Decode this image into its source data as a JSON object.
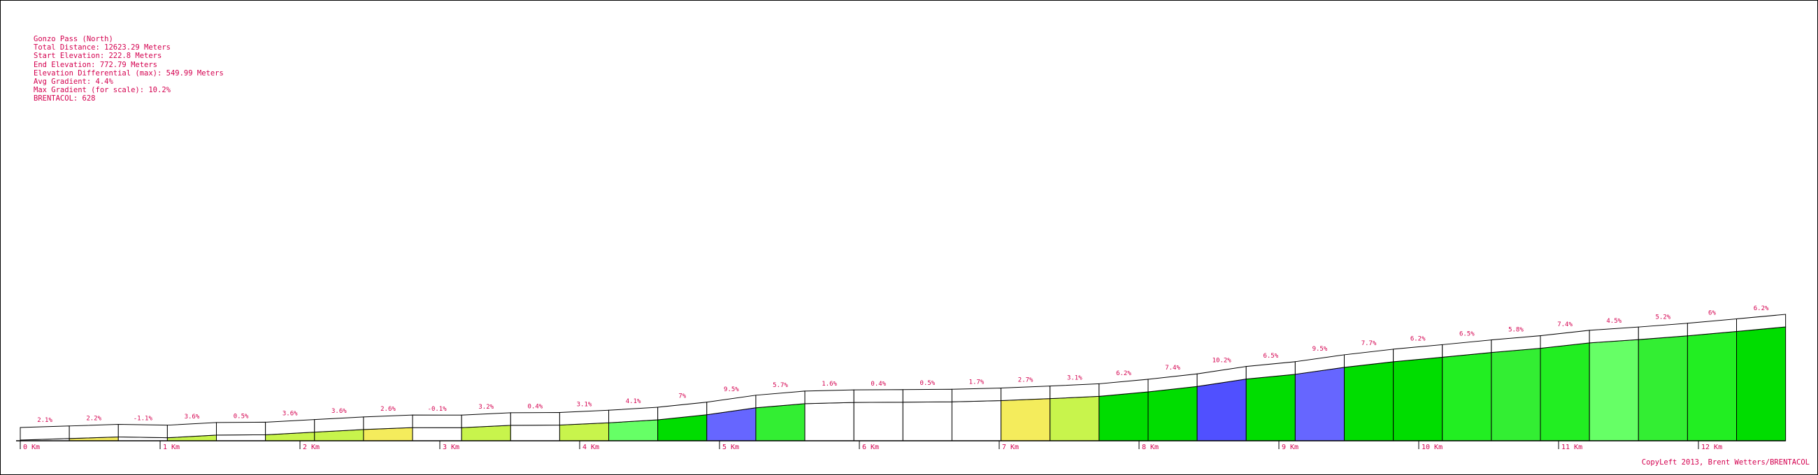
{
  "chart_data": {
    "type": "area",
    "title": "Gonzo Pass (North)",
    "info_lines": [
      "Gonzo Pass (North)",
      "Total Distance: 12623.29 Meters",
      "Start Elevation: 222.8 Meters",
      "End Elevation: 772.79 Meters",
      "Elevation Differential (max): 549.99 Meters",
      "Avg Gradient: 4.4%",
      "Max Gradient (for scale): 10.2%",
      "BRENTACOL: 628"
    ],
    "credit": "CopyLeft 2013, Brent Wetters/BRENTACOL",
    "segment_length_m": 350,
    "x_unit": "Km",
    "x_ticks": [
      0,
      1,
      2,
      3,
      4,
      5,
      6,
      7,
      8,
      9,
      10,
      11,
      12
    ],
    "x_tick_labels": [
      "0 Km",
      "1 Km",
      "2 Km",
      "3 Km",
      "4 Km",
      "5 Km",
      "6 Km",
      "7 Km",
      "8 Km",
      "9 Km",
      "10 Km",
      "11 Km",
      "12 Km"
    ],
    "gradient_labels": [
      "2.1%",
      "2.2%",
      "-1.1%",
      "3.6%",
      "0.5%",
      "3.6%",
      "3.6%",
      "2.6%",
      "-0.1%",
      "3.2%",
      "0.4%",
      "3.1%",
      "4.1%",
      "7%",
      "9.5%",
      "5.7%",
      "1.6%",
      "0.4%",
      "0.5%",
      "1.7%",
      "2.7%",
      "3.1%",
      "6.2%",
      "7.4%",
      "10.2%",
      "6.5%",
      "9.5%",
      "7.7%",
      "6.2%",
      "6.5%",
      "5.8%",
      "7.4%",
      "4.5%",
      "5.2%",
      "6%",
      "6.2%"
    ],
    "gradients": [
      2.1,
      2.2,
      -1.1,
      3.6,
      0.5,
      3.6,
      3.6,
      2.6,
      -0.1,
      3.2,
      0.4,
      3.1,
      4.1,
      7,
      9.5,
      5.7,
      1.6,
      0.4,
      0.5,
      1.7,
      2.7,
      3.1,
      6.2,
      7.4,
      10.2,
      6.5,
      9.5,
      7.7,
      6.2,
      6.5,
      5.8,
      7.4,
      4.5,
      5.2,
      6,
      6.2
    ],
    "segment_colors": [
      "#ffffff",
      "#f4ec5c",
      "#ffffff",
      "#c8f44c",
      "#ffffff",
      "#c8f44c",
      "#c8f44c",
      "#f4ec5c",
      "#ffffff",
      "#c8f44c",
      "#ffffff",
      "#c8f44c",
      "#66ff66",
      "#00dd00",
      "#6666ff",
      "#33ee33",
      "#ffffff",
      "#ffffff",
      "#ffffff",
      "#ffffff",
      "#f4ec5c",
      "#c8f44c",
      "#00dd00",
      "#00dd00",
      "#5050ff",
      "#00dd00",
      "#6666ff",
      "#00dd00",
      "#00dd00",
      "#22ee22",
      "#33ee33",
      "#22ee22",
      "#66ff66",
      "#33ee33",
      "#22ee22",
      "#00dd00"
    ],
    "start_elevation_m": 222.8,
    "end_elevation_m": 772.79,
    "accent_color": "#d4004f"
  }
}
